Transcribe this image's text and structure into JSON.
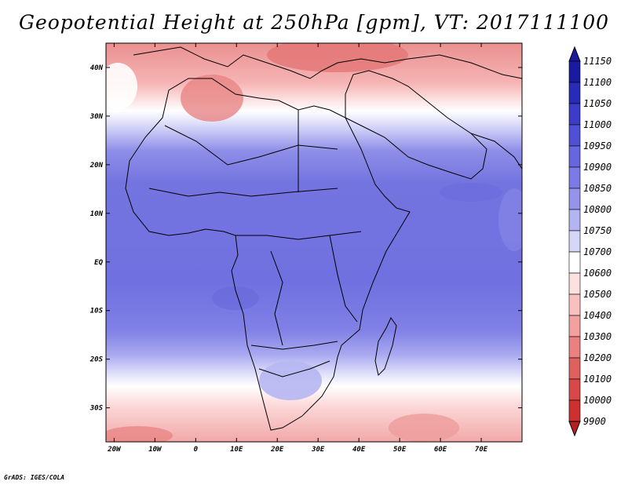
{
  "title": "Geopotential Height at 250hPa [gpm], VT: 2017111100",
  "credit": "GrADS: IGES/COLA",
  "map": {
    "lon_range": [
      -22,
      80
    ],
    "lat_range": [
      -37,
      45
    ],
    "x_ticks": [
      "20W",
      "10W",
      "0",
      "10E",
      "20E",
      "30E",
      "40E",
      "50E",
      "60E",
      "70E"
    ],
    "x_tick_values": [
      -20,
      -10,
      0,
      10,
      20,
      30,
      40,
      50,
      60,
      70
    ],
    "y_ticks": [
      "40N",
      "30N",
      "20N",
      "10N",
      "EQ",
      "10S",
      "20S",
      "30S"
    ],
    "y_tick_values": [
      40,
      30,
      20,
      10,
      0,
      -10,
      -20,
      -30
    ]
  },
  "colorbar": {
    "levels": [
      "11150",
      "11100",
      "11050",
      "11000",
      "10950",
      "10900",
      "10850",
      "10800",
      "10750",
      "10700",
      "10600",
      "10500",
      "10400",
      "10300",
      "10200",
      "10100",
      "10000",
      "9900"
    ],
    "colors": [
      "#1a1aa0",
      "#2a2ab8",
      "#3c3cc8",
      "#5050d6",
      "#6666e0",
      "#7b7be8",
      "#9494ec",
      "#b4b4f2",
      "#d6d6f8",
      "#ffffff",
      "#fde0e0",
      "#f9c0c0",
      "#f2a0a0",
      "#ea8080",
      "#e06060",
      "#d84848",
      "#cc3030",
      "#b82020"
    ]
  }
}
